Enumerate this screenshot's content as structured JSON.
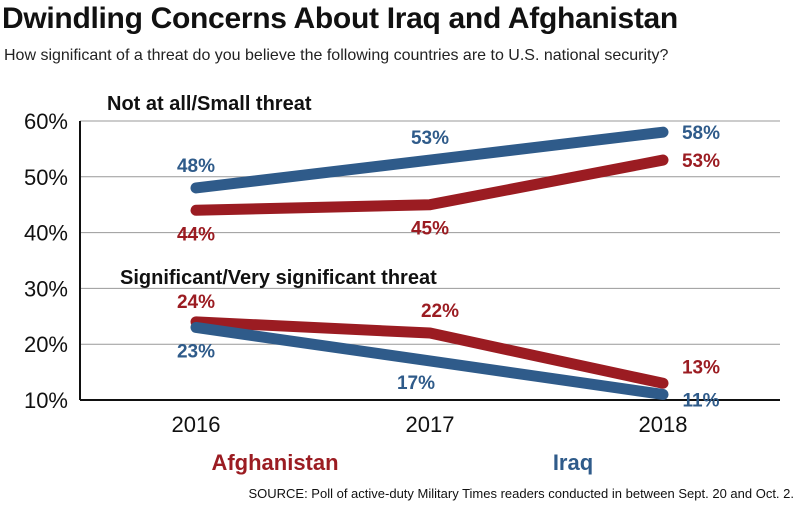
{
  "chart_data": {
    "type": "line",
    "title": "Dwindling Concerns About Iraq and Afghanistan",
    "subtitle": "How significant of a threat do you believe the following countries are to U.S. national security?",
    "x": [
      "2016",
      "2017",
      "2018"
    ],
    "ylim": [
      10,
      60
    ],
    "yticks": [
      "10%",
      "20%",
      "30%",
      "40%",
      "50%",
      "60%"
    ],
    "ytick_values": [
      10,
      20,
      30,
      40,
      50,
      60
    ],
    "grid": true,
    "groups": [
      {
        "name": "Not at all/Small threat",
        "series": [
          {
            "name": "Iraq",
            "values": [
              48,
              53,
              58
            ],
            "labels": [
              "48%",
              "53%",
              "58%"
            ]
          },
          {
            "name": "Afghanistan",
            "values": [
              44,
              45,
              53
            ],
            "labels": [
              "44%",
              "45%",
              "53%"
            ]
          }
        ]
      },
      {
        "name": "Significant/Very significant threat",
        "series": [
          {
            "name": "Afghanistan",
            "values": [
              24,
              22,
              13
            ],
            "labels": [
              "24%",
              "22%",
              "13%"
            ]
          },
          {
            "name": "Iraq",
            "values": [
              23,
              17,
              11
            ],
            "labels": [
              "23%",
              "17%",
              "11%"
            ]
          }
        ]
      }
    ],
    "legend": [
      {
        "name": "Afghanistan",
        "color": "#9b1c22"
      },
      {
        "name": "Iraq",
        "color": "#2f5b8a"
      }
    ],
    "legend_placement": "bottom",
    "colors": {
      "Iraq": "#2f5b8a",
      "Afghanistan": "#9b1c22"
    },
    "source": "SOURCE: Poll of active-duty Military Times readers conducted in between Sept. 20 and Oct. 2."
  }
}
